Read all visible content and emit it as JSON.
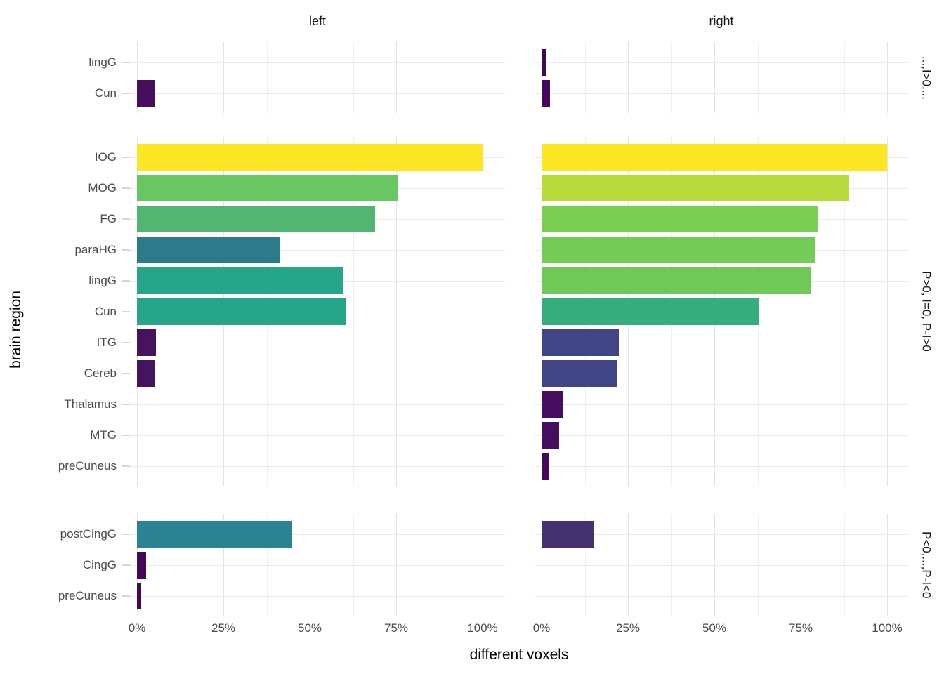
{
  "chart_data": {
    "type": "bar",
    "orientation": "horizontal",
    "title": "",
    "xlabel": "different voxels",
    "ylabel": "brain region",
    "x_range": [
      0,
      100
    ],
    "x_ticks": [
      {
        "pct": 0,
        "label": "0%"
      },
      {
        "pct": 25,
        "label": "25%"
      },
      {
        "pct": 50,
        "label": "50%"
      },
      {
        "pct": 75,
        "label": "75%"
      },
      {
        "pct": 100,
        "label": "100%"
      }
    ],
    "grid_pcts": [
      0,
      12.5,
      25,
      37.5,
      50,
      62.5,
      75,
      87.5,
      100
    ],
    "legend_position": "none",
    "col_facets": [
      {
        "label": "left"
      },
      {
        "label": "right"
      }
    ],
    "row_facets": [
      {
        "label": "...,I>0,...",
        "regions": [
          "lingG",
          "Cun"
        ],
        "left": {
          "values": [
            0,
            5
          ],
          "colors": [
            null,
            "#470e60"
          ]
        },
        "right": {
          "values": [
            1.2,
            2.4
          ],
          "colors": [
            "#440556",
            "#45085b"
          ]
        }
      },
      {
        "label": "P>0, I=0, P-I>0",
        "regions": [
          "IOG",
          "MOG",
          "FG",
          "paraHG",
          "lingG",
          "Cun",
          "ITG",
          "Cereb",
          "Thalamus",
          "MTG",
          "preCuneus"
        ],
        "left": {
          "values": [
            100,
            75.5,
            69,
            41.5,
            59.5,
            60.5,
            5.5,
            5,
            0,
            0,
            0
          ],
          "colors": [
            "#fde725",
            "#68c663",
            "#52b572",
            "#2d7a8b",
            "#26a689",
            "#26a689",
            "#46145f",
            "#46145f",
            null,
            null,
            null
          ]
        },
        "right": {
          "values": [
            100,
            89,
            80,
            79,
            78,
            63,
            22.5,
            22,
            6,
            5,
            2
          ],
          "colors": [
            "#fde725",
            "#b8da3a",
            "#7ace52",
            "#74cb55",
            "#70c857",
            "#36ad7c",
            "#424488",
            "#424488",
            "#460d5e",
            "#460d5e",
            "#44075a"
          ]
        }
      },
      {
        "label": "P<0,...,P-I<0",
        "regions": [
          "postCingG",
          "CingG",
          "preCuneus"
        ],
        "left": {
          "values": [
            45,
            2.6,
            1.3
          ],
          "colors": [
            "#2b8290",
            "#45095c",
            "#440657"
          ]
        },
        "right": {
          "values": [
            15,
            0,
            0
          ],
          "colors": [
            "#44316f",
            null,
            null
          ]
        }
      }
    ],
    "colors": {
      "grid_major": "#e3e3e3",
      "grid_minor": "#f0f0f0",
      "axis_text": "#4d4d4d",
      "strip_text": "#1a1a1a",
      "title_text": "#000000",
      "viridis_low": "#440154",
      "viridis_high": "#fde725"
    }
  }
}
